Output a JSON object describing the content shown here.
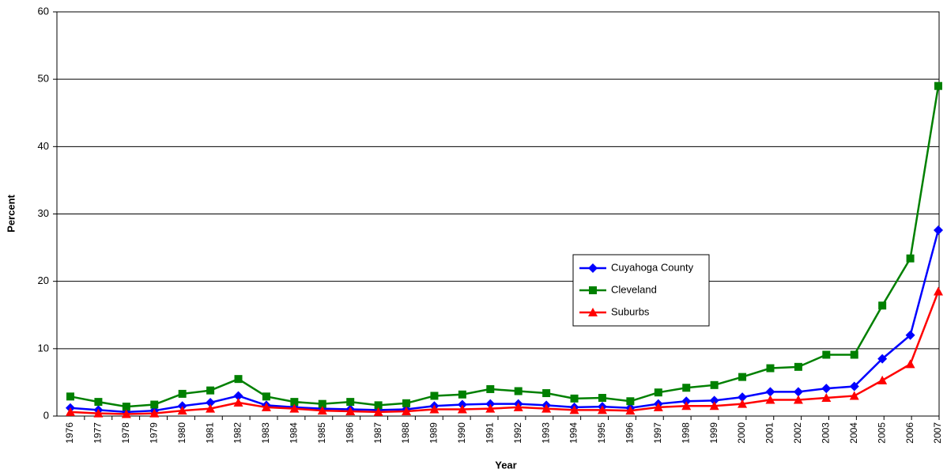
{
  "chart_data": {
    "type": "line",
    "x_label": "Year",
    "y_label": "Percent",
    "categories": [
      "1976",
      "1977",
      "1978",
      "1979",
      "1980",
      "1981",
      "1982",
      "1983",
      "1984",
      "1985",
      "1986",
      "1987",
      "1988",
      "1989",
      "1990",
      "1991",
      "1992",
      "1993",
      "1994",
      "1995",
      "1996",
      "1997",
      "1998",
      "1999",
      "2000",
      "2001",
      "2002",
      "2003",
      "2004",
      "2005",
      "2006",
      "2007"
    ],
    "series": [
      {
        "name": "Cuyahoga County",
        "color": "#0000ff",
        "marker": "diamond",
        "values": [
          1.2,
          0.9,
          0.6,
          0.8,
          1.5,
          2.0,
          3.0,
          1.6,
          1.3,
          1.1,
          1.0,
          0.9,
          1.0,
          1.5,
          1.7,
          1.8,
          1.8,
          1.6,
          1.3,
          1.4,
          1.2,
          1.8,
          2.2,
          2.3,
          2.8,
          3.6,
          3.6,
          4.1,
          4.4,
          8.5,
          12.0,
          27.6
        ]
      },
      {
        "name": "Cleveland",
        "color": "#008000",
        "marker": "square",
        "values": [
          2.9,
          2.1,
          1.4,
          1.7,
          3.3,
          3.8,
          5.5,
          2.9,
          2.1,
          1.8,
          2.1,
          1.6,
          1.9,
          3.0,
          3.2,
          4.0,
          3.7,
          3.4,
          2.6,
          2.7,
          2.2,
          3.5,
          4.2,
          4.6,
          5.8,
          7.1,
          7.3,
          9.1,
          9.1,
          16.4,
          23.4,
          49.0
        ]
      },
      {
        "name": "Suburbs",
        "color": "#ff0000",
        "marker": "triangle",
        "values": [
          0.6,
          0.4,
          0.3,
          0.4,
          0.8,
          1.1,
          2.0,
          1.3,
          1.1,
          0.8,
          0.7,
          0.6,
          0.7,
          1.0,
          1.0,
          1.1,
          1.3,
          1.1,
          0.9,
          0.9,
          0.8,
          1.3,
          1.5,
          1.5,
          1.8,
          2.4,
          2.4,
          2.7,
          3.0,
          5.3,
          7.7,
          18.5
        ]
      }
    ],
    "ylim": [
      0,
      60
    ],
    "yticks": [
      0,
      10,
      20,
      30,
      40,
      50,
      60
    ],
    "grid": true
  }
}
